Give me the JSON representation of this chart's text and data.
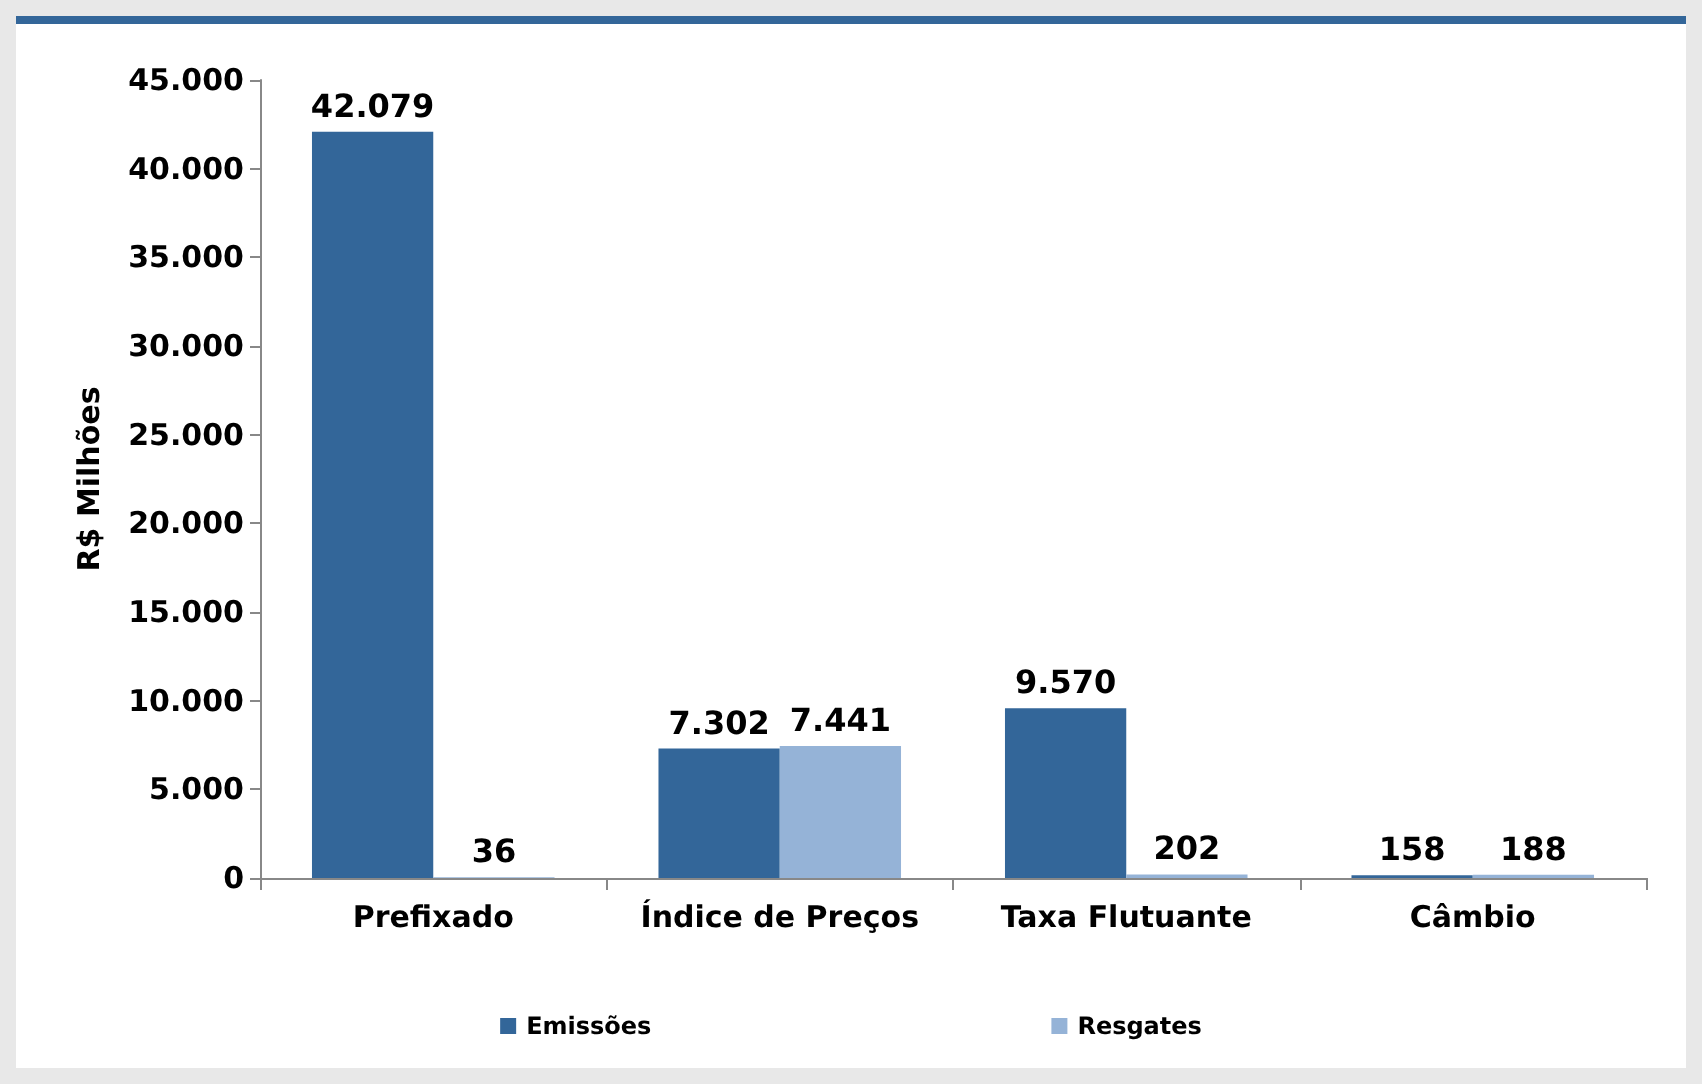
{
  "chart_data": {
    "type": "bar",
    "ylabel": "R$ Milhões",
    "categories": [
      "Prefixado",
      "Índice de Preços",
      "Taxa Flutuante",
      "Câmbio"
    ],
    "series": [
      {
        "name": "Emissões",
        "color": "#336699",
        "values": [
          42079,
          7302,
          9570,
          158
        ],
        "value_labels": [
          "42.079",
          "7.302",
          "9.570",
          "158"
        ]
      },
      {
        "name": "Resgates",
        "color": "#95b3d7",
        "values": [
          36,
          7441,
          202,
          188
        ],
        "value_labels": [
          "36",
          "7.441",
          "202",
          "188"
        ]
      }
    ],
    "ylim": [
      0,
      45000
    ],
    "yticks": [
      {
        "value": 0,
        "label": "0"
      },
      {
        "value": 5000,
        "label": "5.000"
      },
      {
        "value": 10000,
        "label": "10.000"
      },
      {
        "value": 15000,
        "label": "15.000"
      },
      {
        "value": 20000,
        "label": "20.000"
      },
      {
        "value": 25000,
        "label": "25.000"
      },
      {
        "value": 30000,
        "label": "30.000"
      },
      {
        "value": 35000,
        "label": "35.000"
      },
      {
        "value": 40000,
        "label": "40.000"
      },
      {
        "value": 45000,
        "label": "45.000"
      }
    ],
    "grid": false,
    "legend": "bottom"
  }
}
